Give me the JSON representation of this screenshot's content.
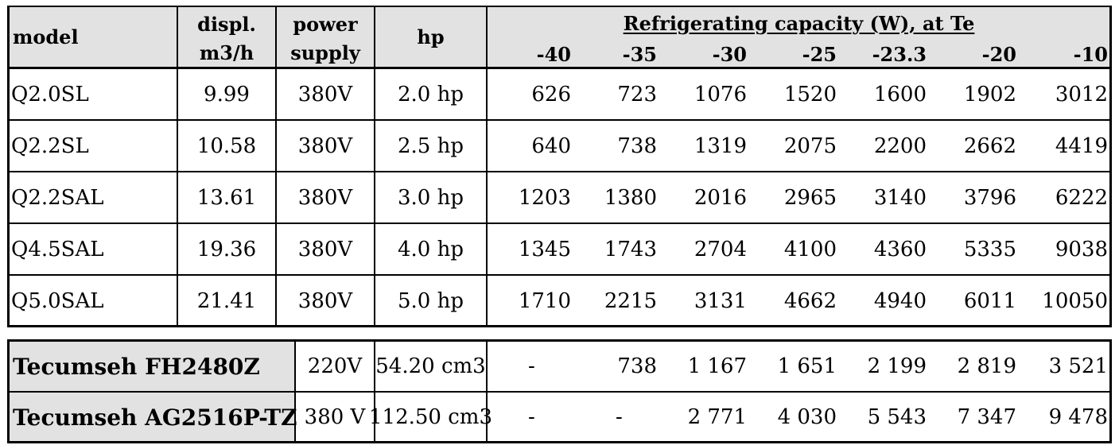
{
  "header": {
    "model": "model",
    "displ_line1": "displ.",
    "displ_line2": "m3/h",
    "power_line1": "power",
    "power_line2": "supply",
    "hp": "hp",
    "capacity_title": "Refrigerating capacity (W), at Te",
    "te_values": [
      "-40",
      "-35",
      "-30",
      "-25",
      "-23.3",
      "-20",
      "-10"
    ]
  },
  "rows": [
    {
      "model": "Q2.0SL",
      "displ": "9.99",
      "power": "380V",
      "hp": "2.0 hp",
      "cap": [
        "626",
        "723",
        "1076",
        "1520",
        "1600",
        "1902",
        "3012"
      ]
    },
    {
      "model": "Q2.2SL",
      "displ": "10.58",
      "power": "380V",
      "hp": "2.5 hp",
      "cap": [
        "640",
        "738",
        "1319",
        "2075",
        "2200",
        "2662",
        "4419"
      ]
    },
    {
      "model": "Q2.2SAL",
      "displ": "13.61",
      "power": "380V",
      "hp": "3.0 hp",
      "cap": [
        "1203",
        "1380",
        "2016",
        "2965",
        "3140",
        "3796",
        "6222"
      ]
    },
    {
      "model": "Q4.5SAL",
      "displ": "19.36",
      "power": "380V",
      "hp": "4.0 hp",
      "cap": [
        "1345",
        "1743",
        "2704",
        "4100",
        "4360",
        "5335",
        "9038"
      ]
    },
    {
      "model": "Q5.0SAL",
      "displ": "21.41",
      "power": "380V",
      "hp": "5.0 hp",
      "cap": [
        "1710",
        "2215",
        "3131",
        "4662",
        "4940",
        "6011",
        "10050"
      ]
    }
  ],
  "tecumseh": [
    {
      "model": "Tecumseh FH2480Z",
      "power": "220V",
      "displ": "54.20 cm3",
      "cap": [
        "-",
        "738",
        "1 167",
        "1 651",
        "2 199",
        "2 819",
        "3 521"
      ]
    },
    {
      "model": "Tecumseh AG2516P-TZ",
      "power": "380 V",
      "displ": "112.50 cm3",
      "cap": [
        "-",
        "-",
        "2 771",
        "4 030",
        "5 543",
        "7 347",
        "9 478"
      ]
    }
  ],
  "colors": {
    "header_bg": "#e2e2e2",
    "border": "#000000"
  }
}
